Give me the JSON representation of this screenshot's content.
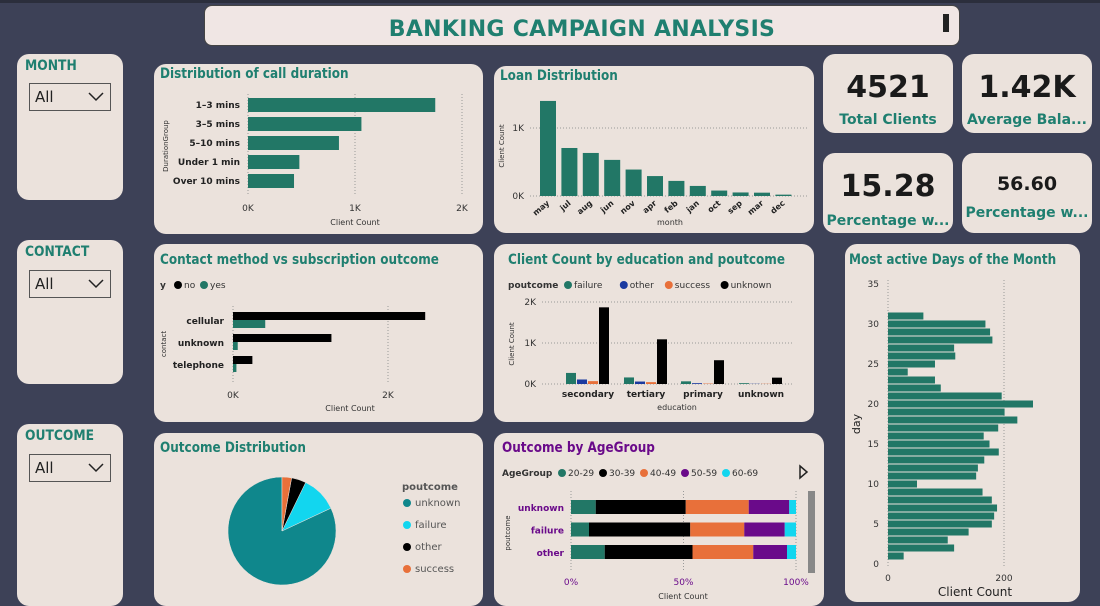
{
  "title": "BANKING CAMPAIGN ANALYSIS",
  "filters": {
    "month": {
      "label": "MONTH",
      "value": "All"
    },
    "contact": {
      "label": "CONTACT",
      "value": "All"
    },
    "outcome": {
      "label": "OUTCOME",
      "value": "All"
    }
  },
  "kpis": {
    "total_clients": {
      "value": "4521",
      "label": "Total Clients"
    },
    "avg_balance": {
      "value": "1.42K",
      "label": "Average Bala..."
    },
    "pct1": {
      "value": "15.28",
      "label": "Percentage w..."
    },
    "pct2": {
      "value": "56.60",
      "label": "Percentage w..."
    }
  },
  "colors": {
    "teal": "#227766",
    "black": "#000000",
    "orange": "#e8703a",
    "purple": "#6a0a8a",
    "cyan": "#12d6ef",
    "blue": "#1b3aa0",
    "pie_teal": "#0f878c"
  },
  "chart_data": [
    {
      "id": "call_duration",
      "type": "bar",
      "orientation": "horizontal",
      "title": "Distribution of call duration",
      "xlabel": "Client Count",
      "ylabel": "DurationGroup",
      "categories": [
        "1–3 mins",
        "3–5 mins",
        "5–10 mins",
        "Under 1 min",
        "Over 10 mins"
      ],
      "values": [
        1750,
        1060,
        850,
        480,
        430
      ],
      "xlim": [
        0,
        2000
      ],
      "ticks": [
        "0K",
        "1K",
        "2K"
      ]
    },
    {
      "id": "loan_distribution",
      "type": "bar",
      "title": "Loan Distribution",
      "xlabel": "month",
      "ylabel": "Client Count",
      "categories": [
        "may",
        "jul",
        "aug",
        "jun",
        "nov",
        "apr",
        "feb",
        "jan",
        "oct",
        "sep",
        "mar",
        "dec"
      ],
      "values": [
        1398,
        706,
        633,
        531,
        389,
        293,
        222,
        148,
        80,
        52,
        49,
        20
      ],
      "ylim": [
        0,
        1500
      ],
      "ticks": [
        "0K",
        "1K"
      ]
    },
    {
      "id": "contact_vs_outcome",
      "type": "bar",
      "orientation": "horizontal",
      "title": "Contact method vs subscription outcome",
      "xlabel": "Client Count",
      "ylabel": "contact",
      "legend_title": "y",
      "categories": [
        "cellular",
        "unknown",
        "telephone"
      ],
      "series": [
        {
          "name": "no",
          "values": [
            2480,
            1270,
            250
          ]
        },
        {
          "name": "yes",
          "values": [
            416,
            61,
            44
          ]
        }
      ],
      "xlim": [
        0,
        3000
      ],
      "ticks": [
        "0K",
        "2K"
      ]
    },
    {
      "id": "education_poutcome",
      "type": "bar",
      "title": "Client Count by education and poutcome",
      "xlabel": "education",
      "ylabel": "Client Count",
      "legend_title": "poutcome",
      "categories": [
        "secondary",
        "tertiary",
        "primary",
        "unknown"
      ],
      "series": [
        {
          "name": "failure",
          "values": [
            270,
            160,
            65,
            20
          ]
        },
        {
          "name": "other",
          "values": [
            110,
            60,
            20,
            5
          ]
        },
        {
          "name": "success",
          "values": [
            70,
            45,
            10,
            5
          ]
        },
        {
          "name": "unknown",
          "values": [
            1870,
            1090,
            580,
            155
          ]
        }
      ],
      "ylim": [
        0,
        2200
      ],
      "ticks": [
        "0K",
        "1K",
        "2K"
      ]
    },
    {
      "id": "active_days",
      "type": "bar",
      "orientation": "horizontal",
      "title": "Most active Days of the Month",
      "xlabel": "Client Count",
      "ylabel": "day",
      "categories": [
        1,
        2,
        3,
        4,
        5,
        6,
        7,
        8,
        9,
        10,
        11,
        12,
        13,
        14,
        15,
        16,
        17,
        18,
        19,
        20,
        21,
        22,
        23,
        24,
        25,
        26,
        27,
        28,
        29,
        30,
        31
      ],
      "values": [
        27,
        114,
        103,
        139,
        179,
        183,
        188,
        179,
        163,
        50,
        152,
        155,
        166,
        191,
        175,
        165,
        190,
        223,
        201,
        250,
        196,
        91,
        81,
        34,
        81,
        116,
        114,
        180,
        176,
        168,
        61
      ],
      "xlim": [
        0,
        280
      ],
      "ticks": [
        "0",
        "200"
      ],
      "yticks": [
        "35",
        "30",
        "25",
        "20",
        "15",
        "10",
        "5",
        "0"
      ]
    },
    {
      "id": "outcome_distribution",
      "type": "pie",
      "title": "Outcome Distribution",
      "legend_title": "poutcome",
      "labels": [
        "unknown",
        "failure",
        "other",
        "success"
      ],
      "values": [
        3705,
        490,
        197,
        129
      ]
    },
    {
      "id": "outcome_by_agegroup",
      "type": "bar",
      "orientation": "horizontal",
      "stacked": "percent",
      "title": "Outcome by AgeGroup",
      "xlabel": "Client Count",
      "ylabel": "poutcome",
      "legend_title": "AgeGroup",
      "categories": [
        "unknown",
        "failure",
        "other"
      ],
      "series": [
        {
          "name": "20-29",
          "values": [
            11,
            8,
            15
          ]
        },
        {
          "name": "30-39",
          "values": [
            40,
            45,
            39
          ]
        },
        {
          "name": "40-49",
          "values": [
            28,
            24,
            27
          ]
        },
        {
          "name": "50-59",
          "values": [
            18,
            18,
            15
          ]
        },
        {
          "name": "60-69",
          "values": [
            3,
            5,
            4
          ]
        }
      ],
      "ticks": [
        "0%",
        "50%",
        "100%"
      ]
    }
  ]
}
